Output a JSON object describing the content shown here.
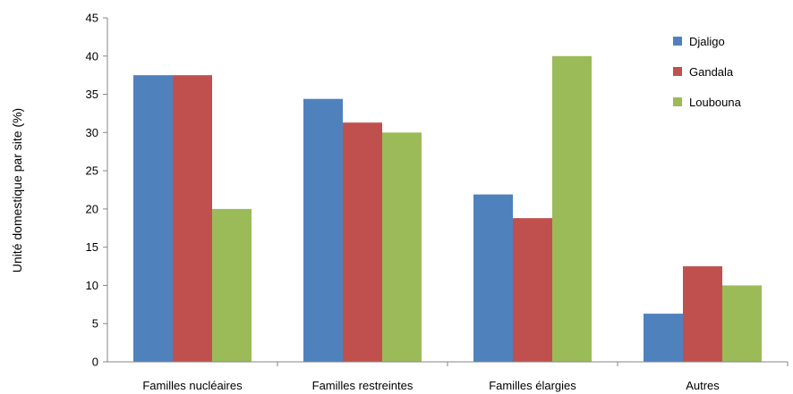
{
  "chart_data": {
    "type": "bar",
    "title": "",
    "xlabel": "",
    "ylabel": "Unité domestique par site (%)",
    "ylim": [
      0,
      45
    ],
    "yticks": [
      0,
      5,
      10,
      15,
      20,
      25,
      30,
      35,
      40,
      45
    ],
    "grid": false,
    "legend_position": "top-right",
    "categories": [
      "Familles nucléaires",
      "Familles restreintes",
      "Familles élargies",
      "Autres"
    ],
    "series": [
      {
        "name": "Djaligo",
        "color": "#4F81BD",
        "values": [
          37.5,
          34.4,
          21.9,
          6.3
        ]
      },
      {
        "name": "Gandala",
        "color": "#C0504D",
        "values": [
          37.5,
          31.3,
          18.8,
          12.5
        ]
      },
      {
        "name": "Loubouna",
        "color": "#9BBB59",
        "values": [
          20,
          30,
          40,
          10
        ]
      }
    ]
  }
}
